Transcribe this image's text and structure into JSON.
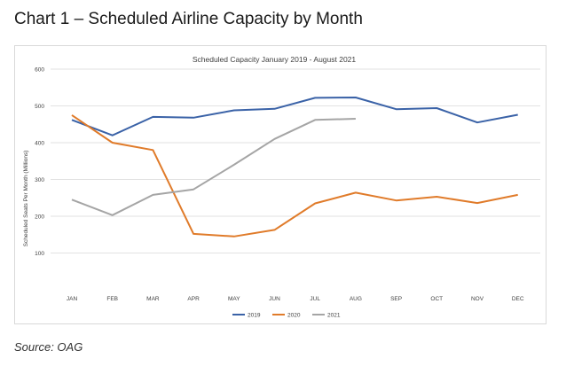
{
  "page": {
    "heading": "Chart 1 – Scheduled Airline Capacity by Month",
    "source": "Source: OAG"
  },
  "colors": {
    "series_2019": "#3a62a7",
    "series_2020": "#e07b2a",
    "series_2021": "#a5a5a5",
    "gridline": "#d9d9d9",
    "axis_text": "#404040"
  },
  "chart_data": {
    "type": "line",
    "title": "Scheduled Capacity January 2019   - August 2021",
    "xlabel": "",
    "ylabel": "Scheduled Seats Per Month (Millions)",
    "categories": [
      "JAN",
      "FEB",
      "MAR",
      "APR",
      "MAY",
      "JUN",
      "JUL",
      "AUG",
      "SEP",
      "OCT",
      "NOV",
      "DEC"
    ],
    "yticks": [
      100,
      200,
      300,
      400,
      500,
      600
    ],
    "ylim": [
      0,
      600
    ],
    "grid": true,
    "legend_position": "bottom",
    "series": [
      {
        "name": "2019",
        "values": [
          462,
          420,
          470,
          468,
          488,
          492,
          522,
          523,
          491,
          494,
          455,
          476
        ]
      },
      {
        "name": "2020",
        "values": [
          475,
          400,
          380,
          152,
          145,
          163,
          235,
          264,
          243,
          253,
          236,
          258
        ]
      },
      {
        "name": "2021",
        "values": [
          245,
          203,
          258,
          273,
          340,
          410,
          462,
          465,
          null,
          null,
          null,
          null
        ]
      }
    ]
  }
}
